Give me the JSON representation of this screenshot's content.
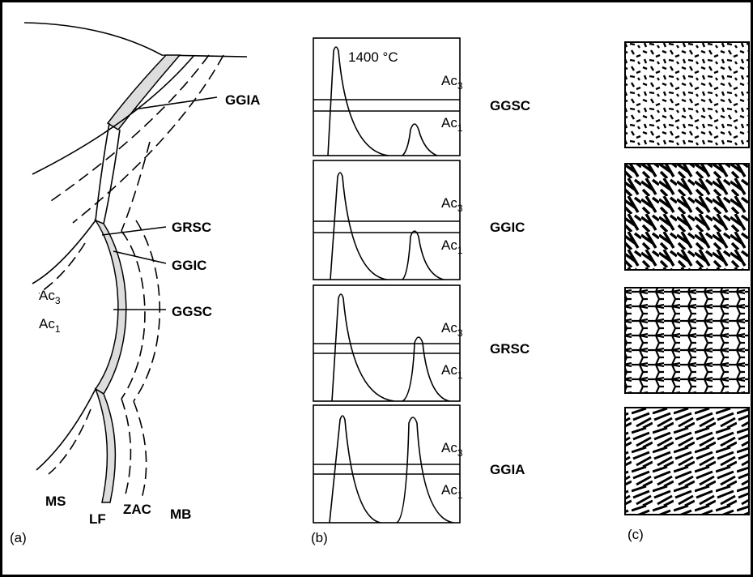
{
  "panel_a": {
    "zones": {
      "ggia": "GGIA",
      "grsc": "GRSC",
      "ggic": "GGIC",
      "ggsc": "GGSC"
    },
    "isotherms": {
      "ac3": {
        "base": "Ac",
        "sub": "3"
      },
      "ac1": {
        "base": "Ac",
        "sub": "1"
      }
    },
    "regions": {
      "ms": "MS",
      "lf": "LF",
      "zac": "ZAC",
      "mb": "MB"
    },
    "label": "(a)"
  },
  "panel_b": {
    "peak_temperature": "1400 °C",
    "cycles": [
      {
        "zone": "GGSC",
        "ac3": {
          "base": "Ac",
          "sub": "3"
        },
        "ac1": {
          "base": "Ac",
          "sub": "1"
        }
      },
      {
        "zone": "GGIC",
        "ac3": {
          "base": "Ac",
          "sub": "3"
        },
        "ac1": {
          "base": "Ac",
          "sub": "1"
        }
      },
      {
        "zone": "GRSC",
        "ac3": {
          "base": "Ac",
          "sub": "3"
        },
        "ac1": {
          "base": "Ac",
          "sub": "1"
        }
      },
      {
        "zone": "GGIA",
        "ac3": {
          "base": "Ac",
          "sub": "3"
        },
        "ac1": {
          "base": "Ac",
          "sub": "1"
        }
      }
    ],
    "label": "(b)"
  },
  "panel_c": {
    "label": "(c)"
  }
}
